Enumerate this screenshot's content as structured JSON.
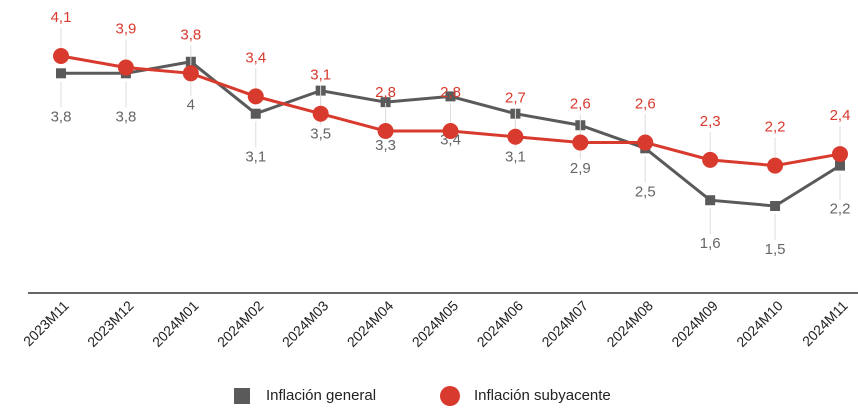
{
  "chart_data": {
    "type": "line",
    "categories": [
      "2023M11",
      "2023M12",
      "2024M01",
      "2024M02",
      "2024M03",
      "2024M04",
      "2024M05",
      "2024M06",
      "2024M07",
      "2024M08",
      "2024M09",
      "2024M10",
      "2024M11"
    ],
    "series": [
      {
        "name": "Inflación general",
        "color": "#5a5a5a",
        "marker": "square",
        "values": [
          3.8,
          3.8,
          4,
          3.1,
          3.5,
          3.3,
          3.4,
          3.1,
          2.9,
          2.5,
          1.6,
          1.5,
          2.2
        ],
        "value_labels": [
          "3,8",
          "3,8",
          "4",
          "3,1",
          "3,5",
          "3,3",
          "3,4",
          "3,1",
          "2,9",
          "2,5",
          "1,6",
          "1,5",
          "2,2"
        ]
      },
      {
        "name": "Inflación subyacente",
        "color": "#d93a2e",
        "marker": "circle",
        "values": [
          4.1,
          3.9,
          3.8,
          3.4,
          3.1,
          2.8,
          2.8,
          2.7,
          2.6,
          2.6,
          2.3,
          2.2,
          2.4
        ],
        "value_labels": [
          "4,1",
          "3,9",
          "3,8",
          "3,4",
          "3,1",
          "2,8",
          "2,8",
          "2,7",
          "2,6",
          "2,6",
          "2,3",
          "2,2",
          "2,4"
        ]
      }
    ]
  }
}
